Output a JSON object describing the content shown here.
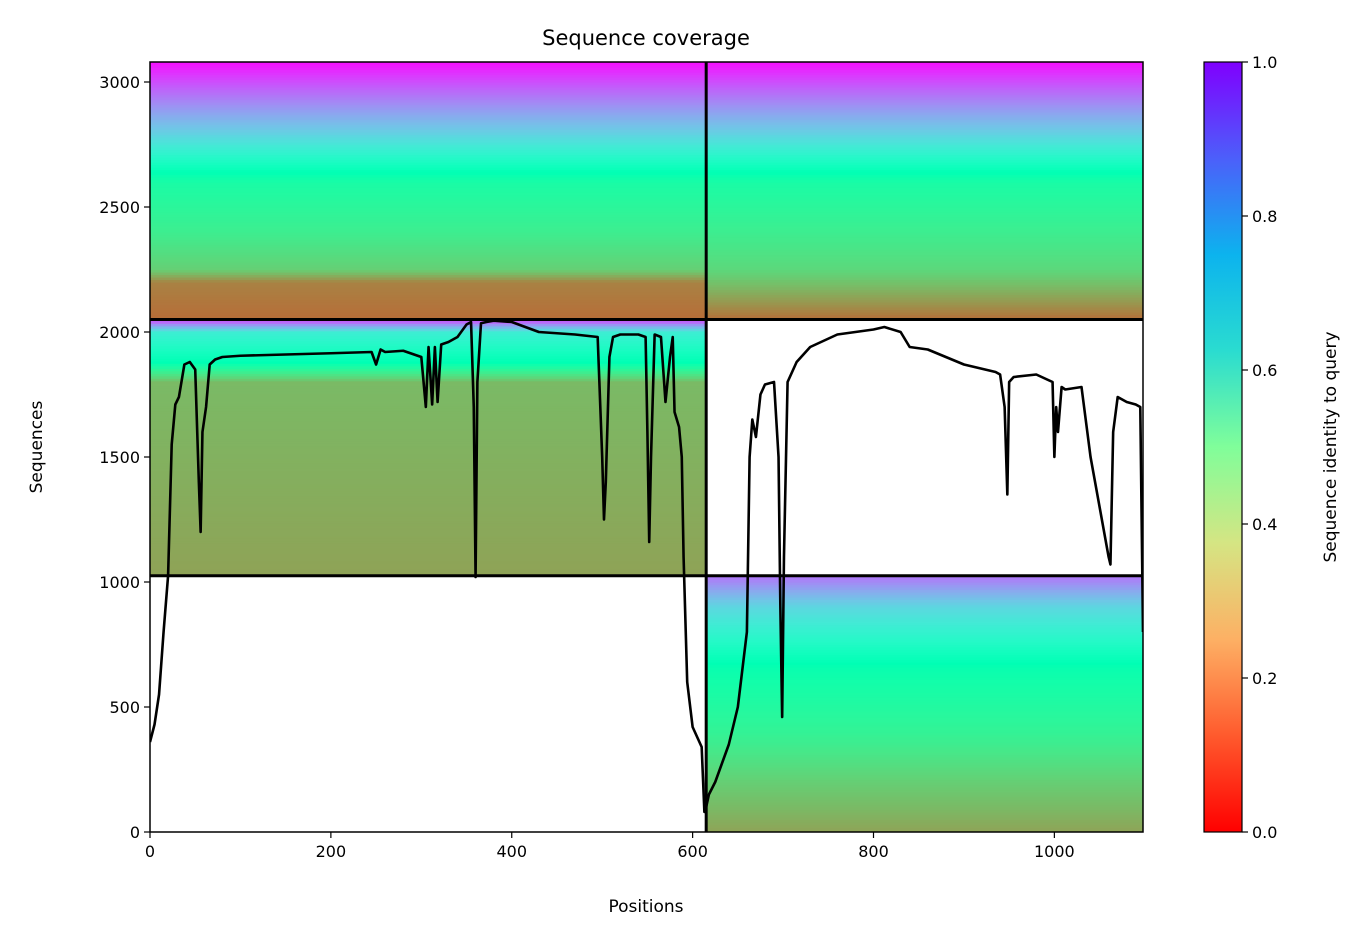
{
  "chart_data": {
    "type": "heatmap",
    "title": "Sequence coverage",
    "xlabel": "Positions",
    "ylabel": "Sequences",
    "xlim": [
      0,
      1098
    ],
    "ylim": [
      0,
      3080
    ],
    "xticks": [
      0,
      200,
      400,
      600,
      800,
      1000
    ],
    "yticks": [
      0,
      500,
      1000,
      1500,
      2000,
      2500,
      3000
    ],
    "colorbar": {
      "label": "Sequence identity to query",
      "colormap": "rainbow_r",
      "range": [
        0,
        1
      ],
      "ticks": [
        "0.0",
        "0.2",
        "0.4",
        "0.6",
        "0.8",
        "1.0"
      ]
    },
    "chain_boundary_x": 615,
    "block_boundaries_y": [
      1025,
      2050
    ],
    "blocks": [
      {
        "x_range": [
          0,
          615
        ],
        "y_range": [
          2050,
          3080
        ],
        "identity_by_row": [
          [
            2050,
            0.14
          ],
          [
            2200,
            0.17
          ],
          [
            2250,
            0.3
          ],
          [
            2400,
            0.38
          ],
          [
            2600,
            0.45
          ],
          [
            2800,
            0.7
          ],
          [
            3080,
            0.98
          ]
        ]
      },
      {
        "x_range": [
          615,
          1098
        ],
        "y_range": [
          2050,
          3080
        ],
        "identity_by_row": [
          [
            2050,
            0.14
          ],
          [
            2250,
            0.32
          ],
          [
            2400,
            0.38
          ],
          [
            2600,
            0.45
          ],
          [
            2800,
            0.7
          ],
          [
            3080,
            0.98
          ]
        ]
      },
      {
        "x_range": [
          0,
          615
        ],
        "y_range": [
          1025,
          2050
        ],
        "identity_by_row": [
          [
            1025,
            0.22
          ],
          [
            1800,
            0.26
          ],
          [
            1880,
            0.5
          ],
          [
            2000,
            0.62
          ],
          [
            2050,
            0.92
          ]
        ]
      },
      {
        "x_range": [
          615,
          1098
        ],
        "y_range": [
          0,
          1025
        ],
        "identity_by_row": [
          [
            0,
            0.22
          ],
          [
            200,
            0.3
          ],
          [
            400,
            0.4
          ],
          [
            650,
            0.48
          ],
          [
            900,
            0.68
          ],
          [
            1025,
            0.85
          ]
        ]
      }
    ],
    "series": [
      {
        "color": "#000000",
        "x": [
          0,
          5,
          10,
          15,
          20,
          24,
          28,
          32,
          38,
          44,
          50,
          54,
          56,
          58,
          62,
          66,
          72,
          80,
          100,
          150,
          200,
          245,
          250,
          255,
          260,
          280,
          300,
          305,
          308,
          312,
          315,
          318,
          322,
          330,
          340,
          350,
          355,
          358,
          360,
          362,
          366,
          372,
          380,
          400,
          430,
          470,
          495,
          500,
          502,
          504,
          508,
          512,
          520,
          540,
          548,
          550,
          552,
          554,
          558,
          565,
          570,
          575,
          578,
          580,
          585,
          588,
          590,
          594,
          600,
          610,
          613,
          615,
          618,
          625,
          640,
          650,
          660,
          663,
          666,
          670,
          675,
          680,
          690,
          695,
          697,
          699,
          701,
          705,
          715,
          730,
          760,
          800,
          812,
          830,
          840,
          860,
          880,
          900,
          935,
          940,
          945,
          948,
          950,
          955,
          980,
          998,
          1000,
          1002,
          1004,
          1008,
          1012,
          1030,
          1040,
          1060,
          1062,
          1065,
          1070,
          1080,
          1090,
          1095,
          1098
        ],
        "y": [
          360,
          430,
          550,
          800,
          1025,
          1550,
          1710,
          1740,
          1870,
          1880,
          1850,
          1400,
          1200,
          1600,
          1700,
          1870,
          1890,
          1900,
          1905,
          1910,
          1915,
          1920,
          1870,
          1930,
          1920,
          1925,
          1900,
          1700,
          1940,
          1710,
          1940,
          1720,
          1950,
          1960,
          1980,
          2030,
          2040,
          1700,
          1020,
          1800,
          2035,
          2040,
          2045,
          2040,
          2000,
          1990,
          1980,
          1500,
          1250,
          1400,
          1900,
          1980,
          1990,
          1990,
          1980,
          1600,
          1160,
          1500,
          1990,
          1980,
          1720,
          1900,
          1980,
          1680,
          1620,
          1500,
          1100,
          600,
          420,
          340,
          80,
          100,
          150,
          200,
          350,
          500,
          800,
          1500,
          1650,
          1580,
          1750,
          1790,
          1800,
          1500,
          900,
          460,
          1100,
          1800,
          1880,
          1940,
          1990,
          2010,
          2020,
          2000,
          1940,
          1930,
          1900,
          1870,
          1840,
          1830,
          1700,
          1350,
          1800,
          1820,
          1830,
          1800,
          1500,
          1700,
          1600,
          1780,
          1770,
          1780,
          1500,
          1100,
          1070,
          1600,
          1740,
          1720,
          1710,
          1700,
          800
        ]
      }
    ]
  }
}
